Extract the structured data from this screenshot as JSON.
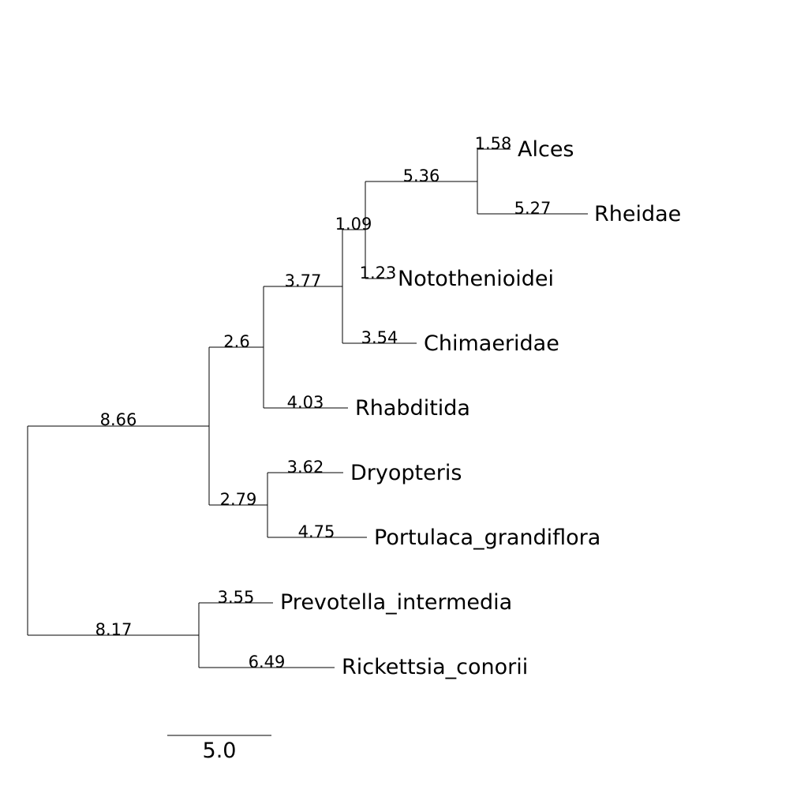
{
  "tree": {
    "taxa": [
      "Alces",
      "Rheidae",
      "Notothenioidei",
      "Chimaeridae",
      "Rhabditida",
      "Dryopteris",
      "Portulaca_grandiflora",
      "Prevotella_intermedia",
      "Rickettsia_conorii"
    ],
    "branch_lengths": {
      "root_to_a": "8.66",
      "a_to_b": "2.6",
      "b_to_c": "3.77",
      "c_to_d": "1.09",
      "d_to_e": "5.36",
      "alces": "1.58",
      "rheidae": "5.27",
      "notothenioidei": "1.23",
      "chimaeridae": "3.54",
      "rhabditida": "4.03",
      "a_to_f": "2.79",
      "dryopteris": "3.62",
      "portulaca_grandiflora": "4.75",
      "root_to_g": "8.17",
      "prevotella_intermedia": "3.55",
      "rickettsia_conorii": "6.49"
    }
  },
  "scale_bar": {
    "label": "5.0",
    "value": 5.0
  }
}
